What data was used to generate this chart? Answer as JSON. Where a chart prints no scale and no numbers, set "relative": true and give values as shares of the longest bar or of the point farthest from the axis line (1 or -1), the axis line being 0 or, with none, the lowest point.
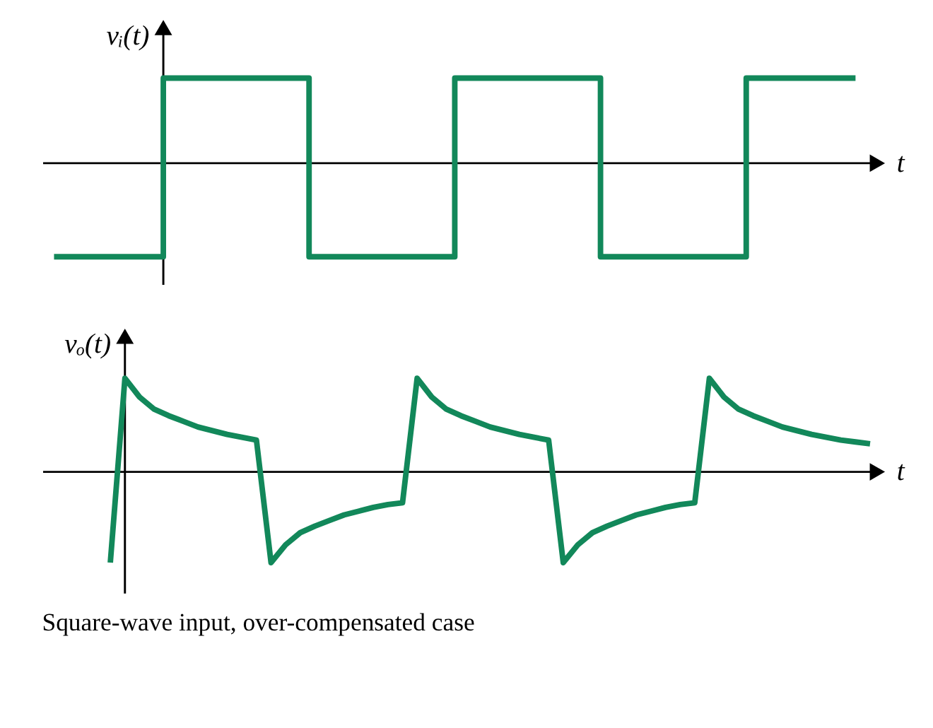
{
  "chart_data": [
    {
      "type": "step",
      "relative": true,
      "ylabel": "vᵢ(t)",
      "xlabel": "t",
      "categories": [
        null,
        null,
        null,
        null,
        null,
        null,
        null,
        null,
        null,
        null,
        null,
        null,
        null,
        null,
        null,
        null,
        null,
        null,
        null,
        null,
        null,
        null,
        null
      ],
      "series": [
        {
          "color": "#12885a",
          "values": [
            -1,
            -1,
            -1,
            0.91,
            0.91,
            0.91,
            0.91,
            -1,
            -1,
            -1,
            -1,
            0.91,
            0.91,
            0.91,
            0.91,
            -1,
            -1,
            -1,
            -1,
            0.91,
            0.91,
            0.91,
            0.91
          ]
        }
      ]
    },
    {
      "type": "line",
      "relative": true,
      "ylabel": "vₒ(t)",
      "xlabel": "t",
      "annotations": [
        "Square-wave input, over-compensated case"
      ],
      "categories": [
        null,
        null,
        null,
        null,
        null,
        null,
        null,
        null,
        null,
        null,
        null,
        null,
        null,
        null,
        null,
        null,
        null,
        null,
        null,
        null,
        null,
        null,
        null,
        null,
        null,
        null,
        null,
        null,
        null,
        null,
        null,
        null,
        null,
        null,
        null,
        null,
        null,
        null,
        null,
        null,
        null,
        null,
        null,
        null,
        null,
        null,
        null,
        null,
        null,
        null,
        null,
        null,
        null
      ],
      "series": [
        {
          "color": "#12885a",
          "values": [
            -0.97,
            1,
            0.8,
            0.67,
            0.6,
            0.54,
            0.48,
            0.44,
            0.4,
            0.37,
            0.34,
            -0.97,
            -0.78,
            -0.65,
            -0.58,
            -0.52,
            -0.46,
            -0.42,
            -0.38,
            -0.35,
            -0.33,
            1,
            0.8,
            0.67,
            0.6,
            0.54,
            0.48,
            0.44,
            0.4,
            0.37,
            0.34,
            -0.97,
            -0.78,
            -0.65,
            -0.58,
            -0.52,
            -0.46,
            -0.42,
            -0.38,
            -0.35,
            -0.33,
            1,
            0.8,
            0.67,
            0.6,
            0.54,
            0.48,
            0.44,
            0.4,
            0.37,
            0.34,
            0.32,
            0.3
          ]
        }
      ]
    }
  ]
}
